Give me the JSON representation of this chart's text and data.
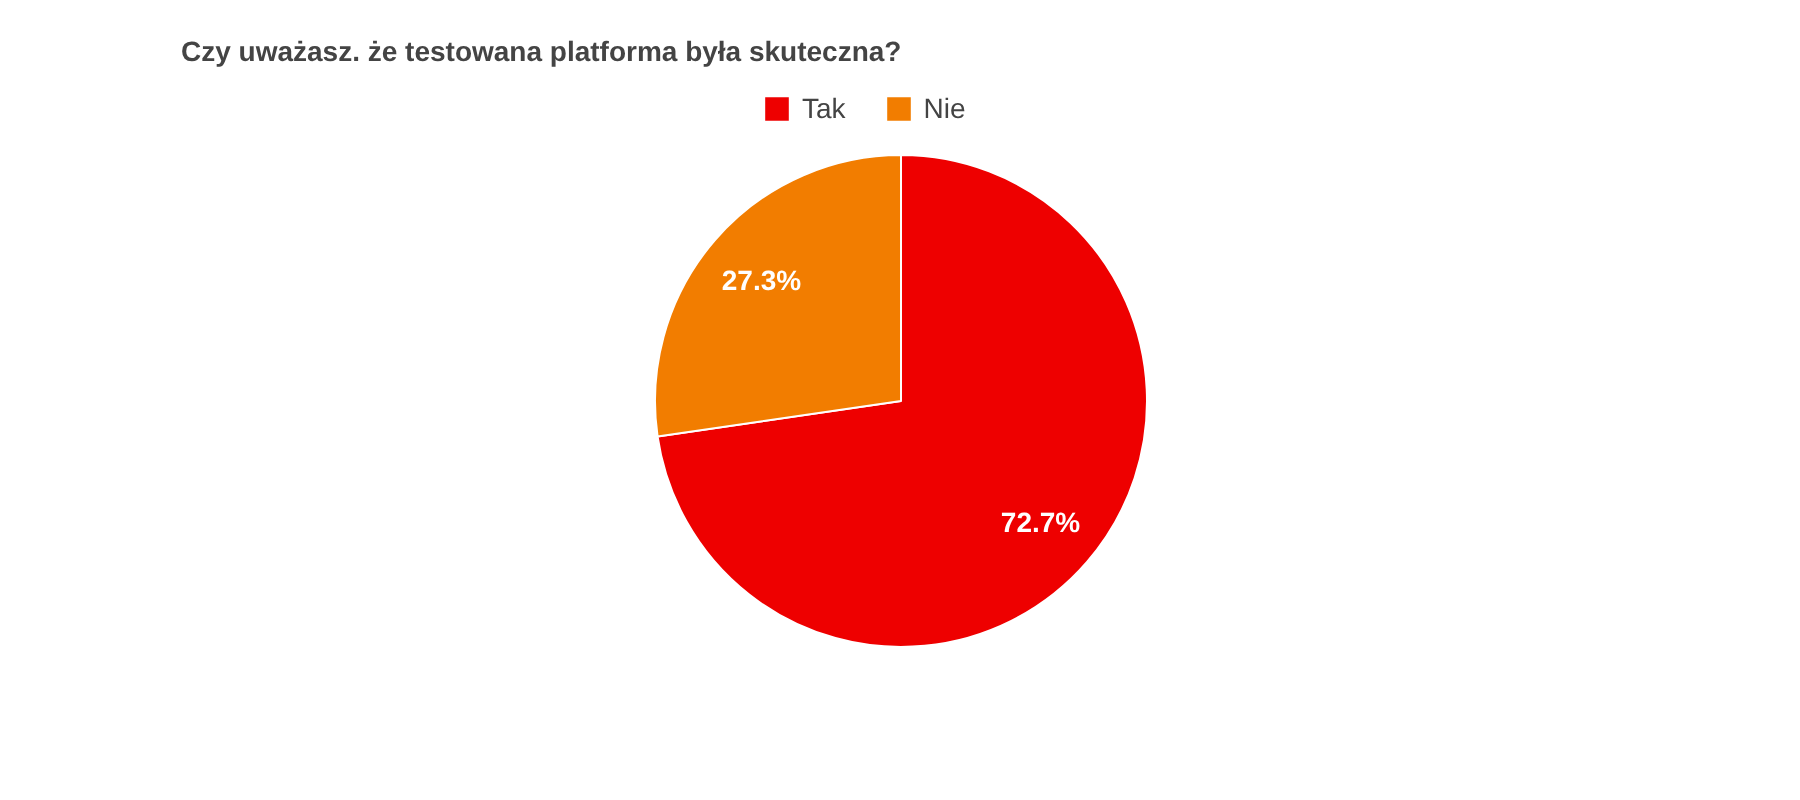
{
  "chart_data": {
    "type": "pie",
    "title": "Czy uważasz. że testowana platforma była skuteczna?",
    "categories": [
      "Tak",
      "Nie"
    ],
    "values": [
      72.7,
      27.3
    ],
    "colors": [
      "#ee0000",
      "#f27d00"
    ],
    "value_labels": [
      "72.7%",
      "27.3%"
    ],
    "legend": "top"
  }
}
